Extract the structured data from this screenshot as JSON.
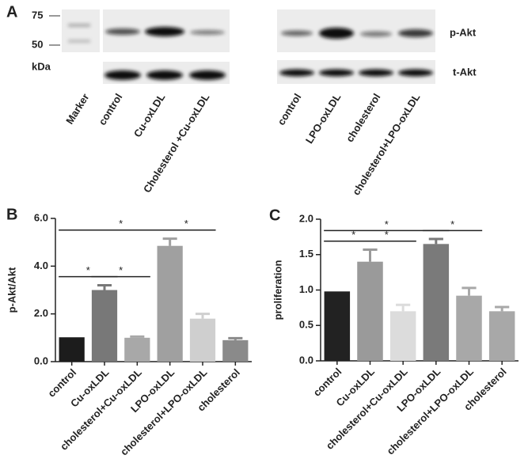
{
  "panel_a": {
    "label": "A",
    "markers": [
      "75",
      "50"
    ],
    "unit": "kDa",
    "rows": [
      "p-Akt",
      "t-Akt"
    ],
    "lanes_left": [
      "Marker",
      "control",
      "Cu-oxLDL",
      "Cholesterol +Cu-oxLDL"
    ],
    "lanes_right": [
      "control",
      "LPO-oxLDL",
      "cholesterol",
      "cholesterol+LPO-oxLDL"
    ]
  },
  "chart_data": [
    {
      "type": "bar",
      "panel": "B",
      "ylabel": "p-Akt/Akt",
      "categories": [
        "control",
        "Cu-oxLDL",
        "cholesterol+Cu-oxLDL",
        "LPO-oxLDL",
        "cholesterol+LPO-oxLDL",
        "cholesterol"
      ],
      "values": [
        1.02,
        3.0,
        1.0,
        4.85,
        1.8,
        0.9
      ],
      "errors": [
        0,
        0.2,
        0.05,
        0.3,
        0.2,
        0.08
      ],
      "colors": [
        "#1c1c1c",
        "#787878",
        "#a8a8a8",
        "#a0a0a0",
        "#cfcfcf",
        "#8a8a8a"
      ],
      "ylim": [
        0,
        6
      ],
      "yticks": [
        {
          "value": 0,
          "label": "0.0"
        },
        {
          "value": 2,
          "label": "2.0"
        },
        {
          "value": 4,
          "label": "4.0"
        },
        {
          "value": 6,
          "label": "6.0"
        }
      ],
      "annotations": [
        {
          "text": "*",
          "between": [
            "control",
            "Cu-oxLDL"
          ]
        },
        {
          "text": "*",
          "between": [
            "Cu-oxLDL",
            "cholesterol+Cu-oxLDL"
          ]
        },
        {
          "text": "*",
          "between": [
            "control",
            "LPO-oxLDL"
          ]
        },
        {
          "text": "*",
          "between": [
            "LPO-oxLDL",
            "cholesterol+LPO-oxLDL"
          ]
        }
      ]
    },
    {
      "type": "bar",
      "panel": "C",
      "ylabel": "proliferation",
      "categories": [
        "control",
        "Cu-oxLDL",
        "cholesterol+Cu-oxLDL",
        "LPO-oxLDL",
        "cholesterol+LPO-oxLDL",
        "cholesterol"
      ],
      "values": [
        0.98,
        1.4,
        0.7,
        1.65,
        0.92,
        0.7
      ],
      "errors": [
        0,
        0.17,
        0.09,
        0.07,
        0.11,
        0.06
      ],
      "colors": [
        "#222222",
        "#9a9a9a",
        "#dcdcdc",
        "#7a7a7a",
        "#a8a8a8",
        "#a8a8a8"
      ],
      "ylim": [
        0,
        2
      ],
      "yticks": [
        {
          "value": 0,
          "label": "0.0"
        },
        {
          "value": 0.5,
          "label": "0.5"
        },
        {
          "value": 1,
          "label": "1.0"
        },
        {
          "value": 1.5,
          "label": "1.5"
        },
        {
          "value": 2,
          "label": "2.0"
        }
      ],
      "annotations": [
        {
          "text": "*",
          "between": [
            "control",
            "Cu-oxLDL"
          ]
        },
        {
          "text": "*",
          "between": [
            "Cu-oxLDL",
            "cholesterol+Cu-oxLDL"
          ]
        },
        {
          "text": "*",
          "between": [
            "control",
            "LPO-oxLDL"
          ]
        },
        {
          "text": "*",
          "between": [
            "LPO-oxLDL",
            "cholesterol+LPO-oxLDL"
          ]
        }
      ]
    }
  ]
}
